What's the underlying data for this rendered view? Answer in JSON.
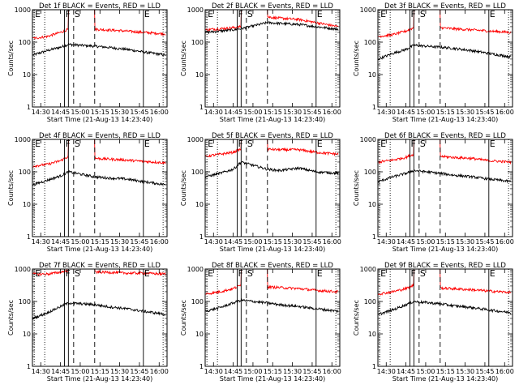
{
  "figure": {
    "xlabel": "Start Time (21-Aug-13 14:23:40)",
    "ylabel": "Counts/sec"
  },
  "chart_data": {
    "type": "line",
    "scale": {
      "y": "log"
    },
    "ylim": [
      1,
      1000
    ],
    "yticks": [
      {
        "value": 1,
        "label": "1"
      },
      {
        "value": 10,
        "label": "10"
      },
      {
        "value": 100,
        "label": "100"
      },
      {
        "value": 1000,
        "label": "1000"
      }
    ],
    "xlim": [
      "14:23:40",
      "16:06"
    ],
    "xticks": [
      "14:30",
      "14:45",
      "15:00",
      "15:15",
      "15:30",
      "15:45",
      "16:00"
    ],
    "colors": {
      "events": "#000000",
      "lld": "#ff0000"
    },
    "markers": [
      {
        "letter": "E",
        "time": "14:25",
        "style": "dotted"
      },
      {
        "letter": "F",
        "time": "14:48",
        "style": "solid"
      },
      {
        "letter": "",
        "time": "14:51",
        "style": "solid"
      },
      {
        "letter": "S",
        "time": "14:55",
        "style": "dashed"
      },
      {
        "letter": "",
        "time": "15:11",
        "style": "dashed"
      },
      {
        "letter": "E",
        "time": "15:48",
        "style": "solid"
      },
      {
        "letter": "",
        "time": "14:33",
        "style": "dotted"
      },
      {
        "letter": "",
        "time": "16:03",
        "style": "dotted"
      }
    ],
    "panels": [
      {
        "title": "Det 1f BLACK = Events, RED = LLD",
        "series": [
          {
            "name": "Events",
            "x": [
              "14:24",
              "14:35",
              "14:45",
              "14:51",
              "15:11",
              "15:20",
              "15:35",
              "15:48",
              "16:05"
            ],
            "values": [
              40,
              55,
              70,
              85,
              75,
              70,
              60,
              50,
              40
            ]
          },
          {
            "name": "LLD",
            "x": [
              "14:24",
              "14:35",
              "14:45",
              "14:51",
              "15:11",
              "15:20",
              "15:35",
              "15:48",
              "16:05"
            ],
            "values": [
              130,
              150,
              200,
              250,
              250,
              240,
              220,
              200,
              180
            ]
          }
        ]
      },
      {
        "title": "Det 2f BLACK = Events, RED = LLD",
        "series": [
          {
            "name": "Events",
            "x": [
              "14:24",
              "14:35",
              "14:45",
              "14:51",
              "15:11",
              "15:20",
              "15:35",
              "15:48",
              "16:05"
            ],
            "values": [
              200,
              220,
              240,
              260,
              400,
              380,
              350,
              300,
              250
            ]
          },
          {
            "name": "LLD",
            "x": [
              "14:24",
              "14:35",
              "14:45",
              "14:51",
              "15:11",
              "15:20",
              "15:35",
              "15:48",
              "16:05"
            ],
            "values": [
              240,
              260,
              280,
              300,
              600,
              550,
              500,
              400,
              300
            ]
          }
        ]
      },
      {
        "title": "Det 3f BLACK = Events, RED = LLD",
        "series": [
          {
            "name": "Events",
            "x": [
              "14:24",
              "14:35",
              "14:45",
              "14:51",
              "15:11",
              "15:20",
              "15:35",
              "15:48",
              "16:05"
            ],
            "values": [
              30,
              45,
              60,
              80,
              70,
              65,
              55,
              45,
              35
            ]
          },
          {
            "name": "LLD",
            "x": [
              "14:24",
              "14:35",
              "14:45",
              "14:51",
              "15:11",
              "15:20",
              "15:35",
              "15:48",
              "16:05"
            ],
            "values": [
              150,
              170,
              220,
              280,
              280,
              260,
              240,
              220,
              200
            ]
          }
        ]
      },
      {
        "title": "Det 4f BLACK = Events, RED = LLD",
        "series": [
          {
            "name": "Events",
            "x": [
              "14:24",
              "14:35",
              "14:45",
              "14:51",
              "15:11",
              "15:20",
              "15:35",
              "15:48",
              "16:05"
            ],
            "values": [
              40,
              55,
              75,
              100,
              70,
              65,
              60,
              50,
              40
            ]
          },
          {
            "name": "LLD",
            "x": [
              "14:24",
              "14:35",
              "14:45",
              "14:51",
              "15:11",
              "15:20",
              "15:35",
              "15:48",
              "16:05"
            ],
            "values": [
              150,
              170,
              220,
              300,
              260,
              250,
              230,
              210,
              190
            ]
          }
        ]
      },
      {
        "title": "Det 5f BLACK = Events, RED = LLD",
        "series": [
          {
            "name": "Events",
            "x": [
              "14:24",
              "14:35",
              "14:45",
              "14:51",
              "15:11",
              "15:20",
              "15:35",
              "15:48",
              "16:05"
            ],
            "values": [
              70,
              90,
              120,
              200,
              120,
              110,
              130,
              100,
              90
            ]
          },
          {
            "name": "LLD",
            "x": [
              "14:24",
              "14:35",
              "14:45",
              "14:51",
              "15:11",
              "15:20",
              "15:35",
              "15:48",
              "16:05"
            ],
            "values": [
              300,
              350,
              400,
              500,
              500,
              480,
              480,
              400,
              350
            ]
          }
        ]
      },
      {
        "title": "Det 6f BLACK = Events, RED = LLD",
        "series": [
          {
            "name": "Events",
            "x": [
              "14:24",
              "14:35",
              "14:45",
              "14:51",
              "15:11",
              "15:20",
              "15:35",
              "15:48",
              "16:05"
            ],
            "values": [
              50,
              70,
              90,
              110,
              90,
              80,
              70,
              60,
              50
            ]
          },
          {
            "name": "LLD",
            "x": [
              "14:24",
              "14:35",
              "14:45",
              "14:51",
              "15:11",
              "15:20",
              "15:35",
              "15:48",
              "16:05"
            ],
            "values": [
              200,
              230,
              280,
              350,
              300,
              280,
              260,
              220,
              200
            ]
          }
        ]
      },
      {
        "title": "Det 7f BLACK = Events, RED = LLD",
        "series": [
          {
            "name": "Events",
            "x": [
              "14:24",
              "14:35",
              "14:45",
              "14:51",
              "15:11",
              "15:20",
              "15:35",
              "15:48",
              "16:05"
            ],
            "values": [
              30,
              45,
              70,
              90,
              80,
              70,
              60,
              50,
              40
            ]
          },
          {
            "name": "LLD",
            "x": [
              "14:24",
              "14:35",
              "14:45",
              "14:51",
              "15:11",
              "15:20",
              "15:35",
              "15:48",
              "16:05"
            ],
            "values": [
              700,
              700,
              800,
              900,
              800,
              800,
              750,
              750,
              700
            ]
          }
        ]
      },
      {
        "title": "Det 8f BLACK = Events, RED = LLD",
        "series": [
          {
            "name": "Events",
            "x": [
              "14:24",
              "14:35",
              "14:45",
              "14:51",
              "15:11",
              "15:20",
              "15:35",
              "15:48",
              "16:05"
            ],
            "values": [
              50,
              65,
              90,
              110,
              90,
              80,
              70,
              60,
              50
            ]
          },
          {
            "name": "LLD",
            "x": [
              "14:24",
              "14:35",
              "14:45",
              "14:51",
              "15:11",
              "15:20",
              "15:35",
              "15:48",
              "16:05"
            ],
            "values": [
              170,
              200,
              250,
              320,
              280,
              270,
              250,
              220,
              200
            ]
          }
        ]
      },
      {
        "title": "Det 9f BLACK = Events, RED = LLD",
        "series": [
          {
            "name": "Events",
            "x": [
              "14:24",
              "14:35",
              "14:45",
              "14:51",
              "15:11",
              "15:20",
              "15:35",
              "15:48",
              "16:05"
            ],
            "values": [
              40,
              55,
              80,
              100,
              85,
              75,
              65,
              55,
              45
            ]
          },
          {
            "name": "LLD",
            "x": [
              "14:24",
              "14:35",
              "14:45",
              "14:51",
              "15:11",
              "15:20",
              "15:35",
              "15:48",
              "16:05"
            ],
            "values": [
              170,
              200,
              250,
              320,
              260,
              250,
              230,
              210,
              190
            ]
          }
        ]
      }
    ]
  }
}
